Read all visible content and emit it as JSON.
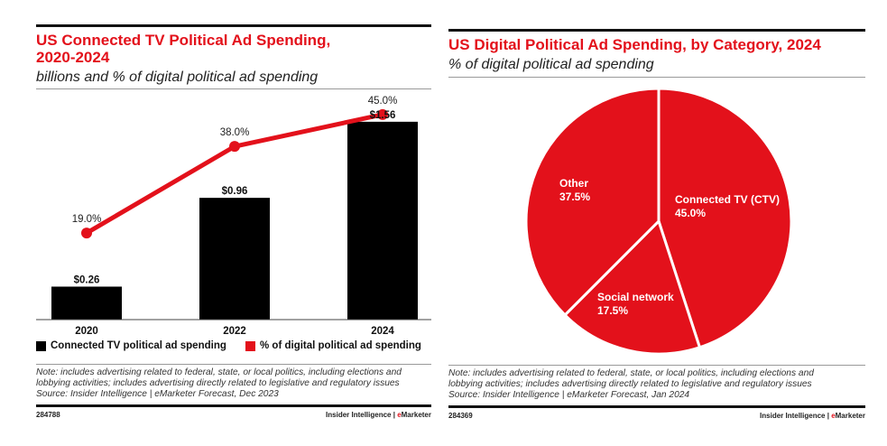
{
  "colors": {
    "accent": "#e3111b",
    "bar": "#000000",
    "text": "#222222"
  },
  "left_panel": {
    "title_line1": "US Connected TV Political Ad Spending,",
    "title_line2": "2020-2024",
    "subtitle": "billions and % of digital political ad spending",
    "legend": [
      {
        "label": "Connected TV political ad spending",
        "color": "#000000"
      },
      {
        "label": "% of digital political ad spending",
        "color": "#e3111b"
      }
    ],
    "note_line1": "Note: includes advertising related to federal, state, or local politics, including elections and",
    "note_line2": "lobbying activities; includes advertising directly related to legislative and regulatory issues",
    "source": "Source: Insider Intelligence | eMarketer Forecast, Dec 2023",
    "chart_id": "284788",
    "brand_prefix": "Insider Intelligence | ",
    "brand_e": "e",
    "brand_rest": "Marketer"
  },
  "right_panel": {
    "title": "US Digital Political Ad Spending, by Category, 2024",
    "subtitle": "% of digital political ad spending",
    "note_line1": "Note: includes advertising related to federal, state, or local politics, including elections and",
    "note_line2": "lobbying activities; includes advertising directly related to legislative and regulatory issues",
    "source": "Source: Insider Intelligence | eMarketer Forecast, Jan 2024",
    "chart_id": "284369",
    "brand_prefix": "Insider Intelligence | ",
    "brand_e": "e",
    "brand_rest": "Marketer"
  },
  "chart_data": [
    {
      "type": "bar",
      "title": "US Connected TV Political Ad Spending, 2020-2024",
      "subtitle": "billions and % of digital political ad spending",
      "categories": [
        "2020",
        "2022",
        "2024"
      ],
      "series": [
        {
          "name": "Connected TV political ad spending",
          "kind": "bar",
          "values": [
            0.26,
            0.96,
            1.56
          ],
          "labels": [
            "$0.26",
            "$0.96",
            "$1.56"
          ]
        },
        {
          "name": "% of digital political ad spending",
          "kind": "line",
          "values": [
            19.0,
            38.0,
            45.0
          ],
          "labels": [
            "19.0%",
            "38.0%",
            "45.0%"
          ]
        }
      ],
      "xlabel": "",
      "ylabel": "",
      "ylim": [
        0,
        1.7
      ],
      "y2lim": [
        0,
        48
      ],
      "grid": false,
      "legend": "bottom"
    },
    {
      "type": "pie",
      "title": "US Digital Political Ad Spending, by Category, 2024",
      "subtitle": "% of digital political ad spending",
      "slices": [
        {
          "label": "Connected TV (CTV)",
          "value": 45.0,
          "display": "45.0%"
        },
        {
          "label": "Social network",
          "value": 17.5,
          "display": "17.5%"
        },
        {
          "label": "Other",
          "value": 37.5,
          "display": "37.5%"
        }
      ],
      "legend": "none"
    }
  ]
}
